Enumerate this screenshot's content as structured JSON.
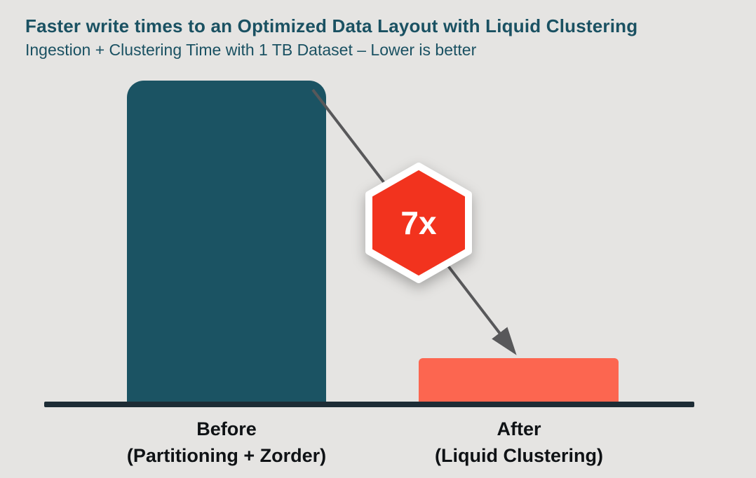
{
  "header": {
    "title": "Faster write times to an Optimized Data Layout with Liquid Clustering",
    "subtitle": "Ingestion + Clustering Time with 1 TB Dataset – Lower is better"
  },
  "badge": {
    "label": "7x"
  },
  "bars": [
    {
      "name": "before",
      "label_line1": "Before",
      "label_line2": "(Partitioning + Zorder)",
      "value": 7
    },
    {
      "name": "after",
      "label_line1": "After",
      "label_line2": "(Liquid Clustering)",
      "value": 1
    }
  ],
  "colors": {
    "background": "#E5E4E2",
    "title_text": "#1A5162",
    "label_text": "#0F1215",
    "bar_before": "#1B5363",
    "bar_after": "#FC6650",
    "baseline": "#1D2C35",
    "arrow": "#58585A",
    "badge_fill": "#F2331E",
    "badge_border": "#FFFFFF",
    "badge_text": "#FFFFFF"
  },
  "chart_data": {
    "type": "bar",
    "title": "Faster write times to an Optimized Data Layout with Liquid Clustering",
    "subtitle": "Ingestion + Clustering Time with 1 TB Dataset – Lower is better",
    "categories": [
      "Before (Partitioning + Zorder)",
      "After (Liquid Clustering)"
    ],
    "values": [
      7,
      1
    ],
    "value_unit": "relative ingestion + clustering time",
    "annotation": "7x faster (arrow from Before bar top to After bar top, hexagon badge labeled 7x)",
    "orientation": "vertical",
    "bar_colors": [
      "#1B5363",
      "#FC6650"
    ],
    "xlabel": "",
    "ylabel": "",
    "grid": false,
    "legend": false,
    "y_axis_ticks_visible": false
  }
}
